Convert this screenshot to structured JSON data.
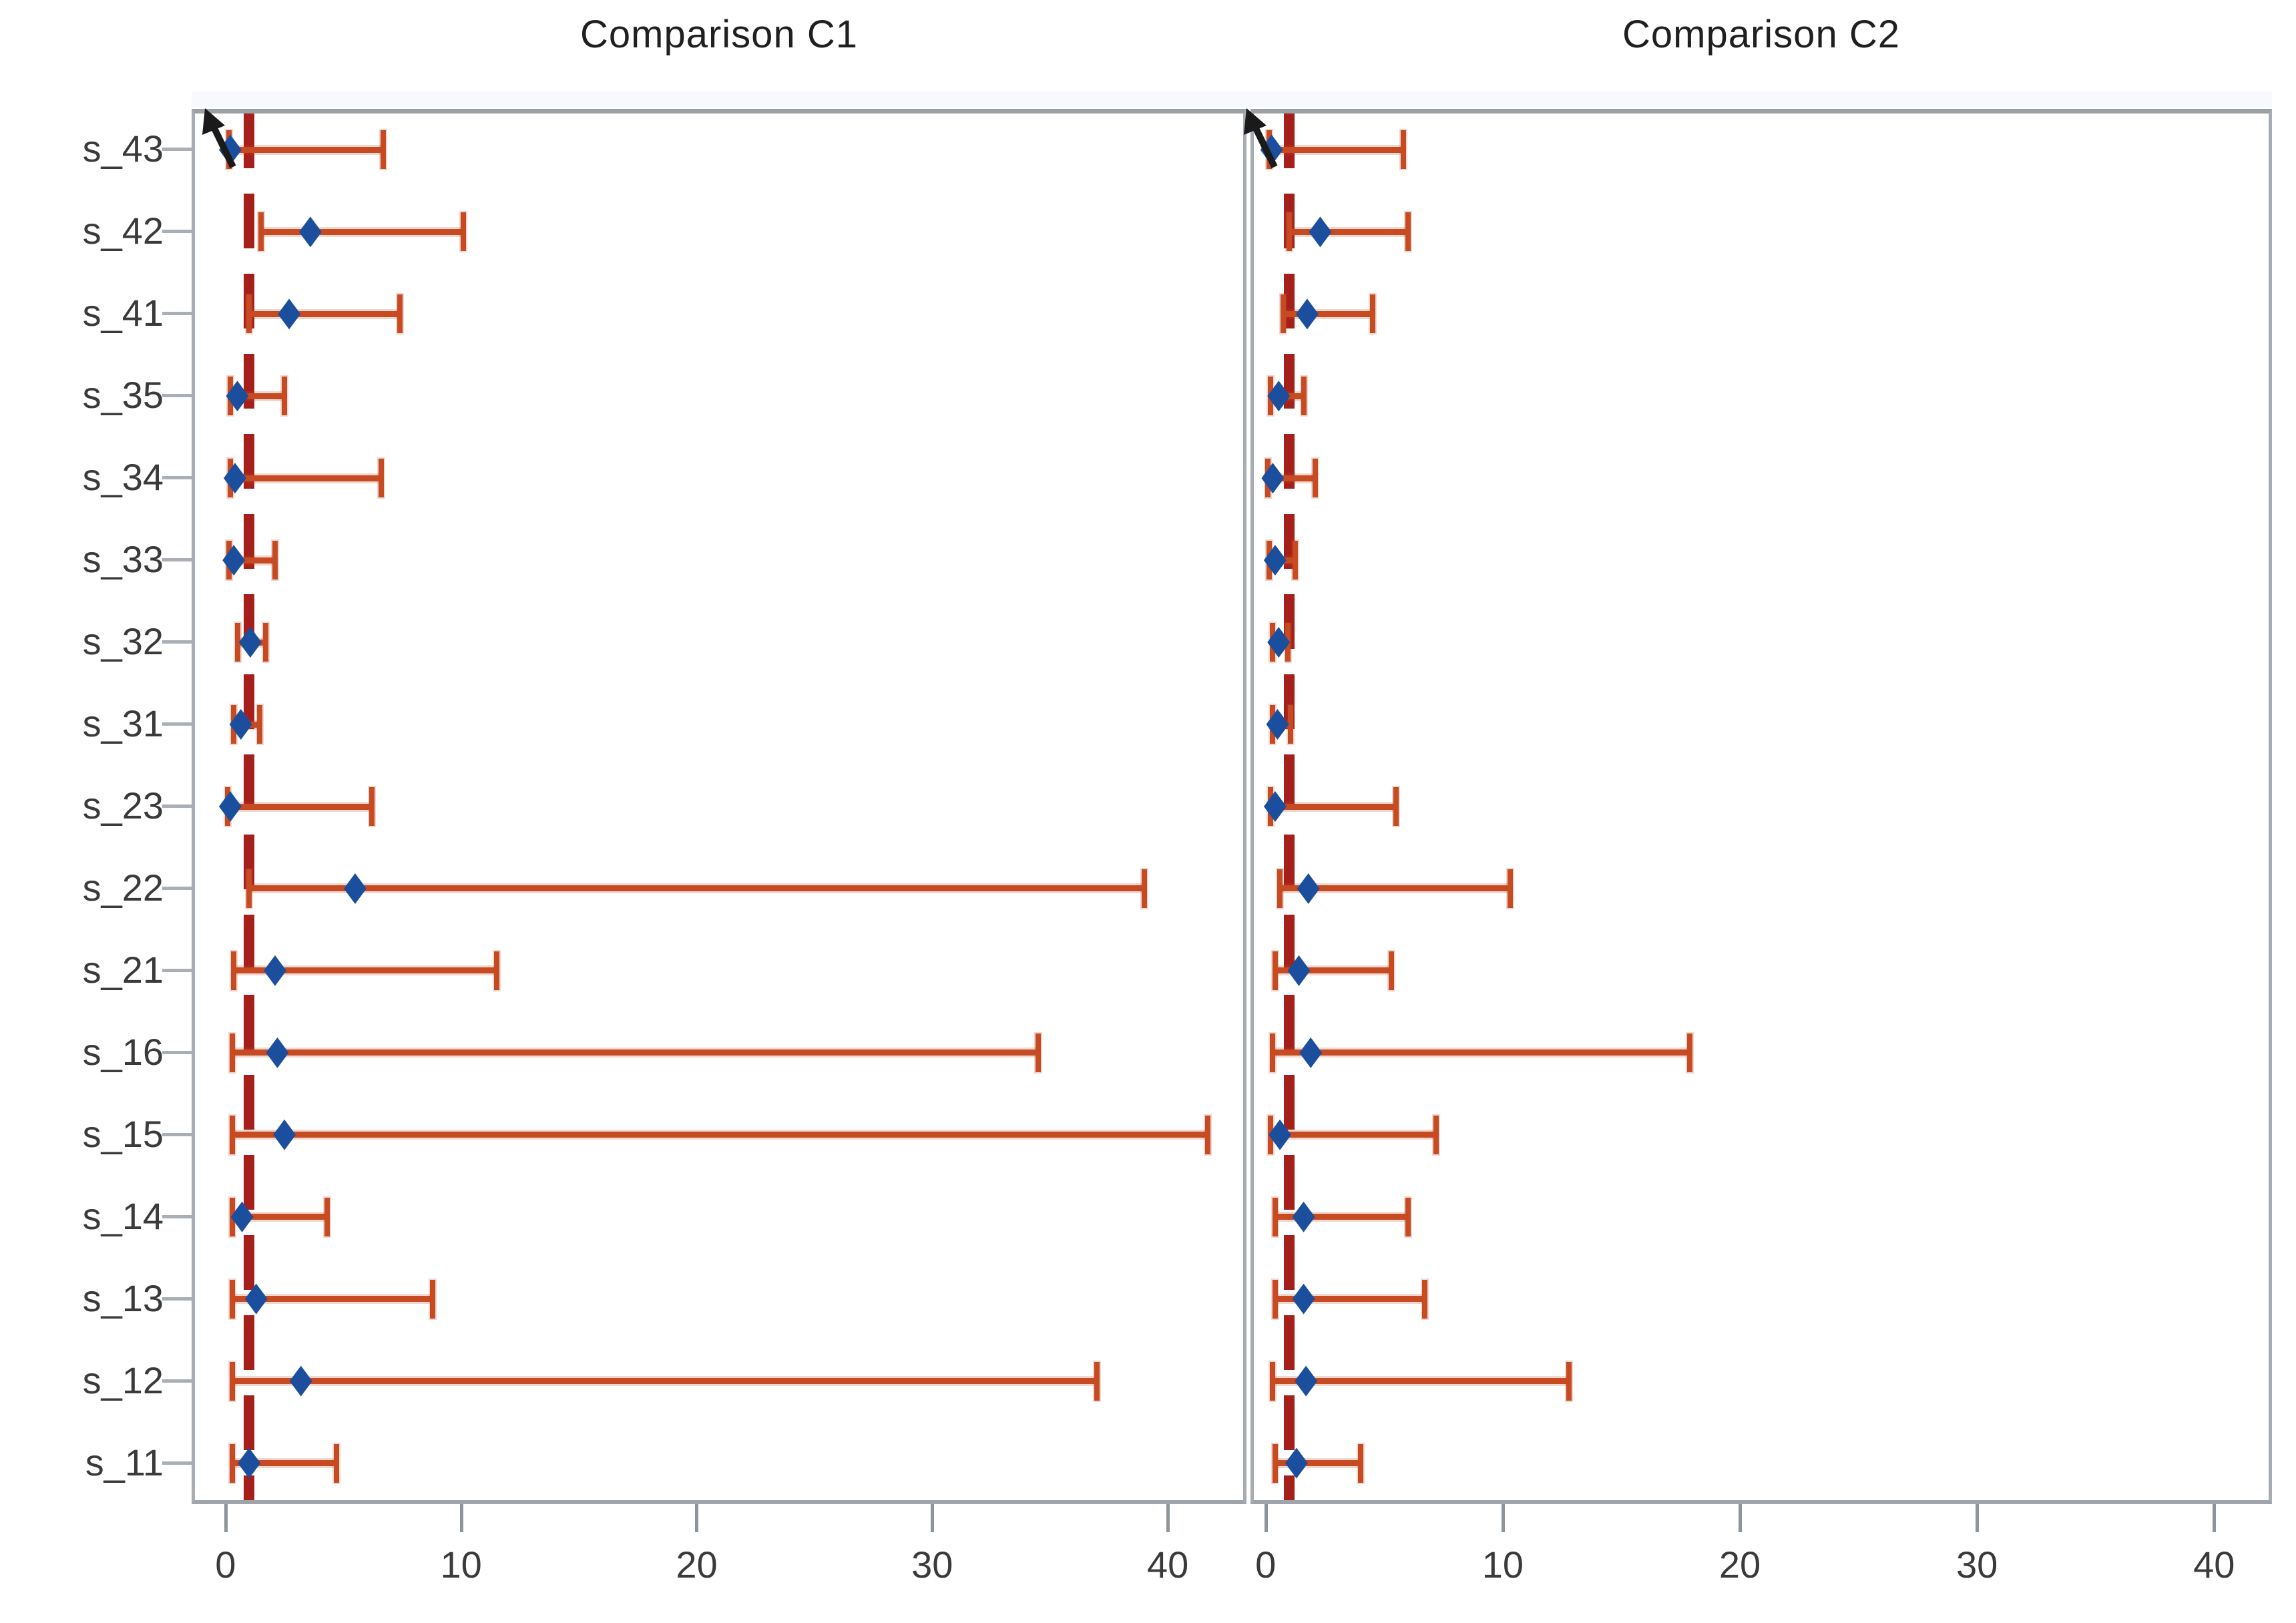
{
  "figure": {
    "background": "#ffffff",
    "colors": {
      "error_bar": "#c64a22",
      "estimate_marker": "#1b4f9e",
      "reference_line": "#a6201b",
      "panel_border": "#a6acb1",
      "axis_tick": "#8e959a",
      "label_text": "#3a3a3a",
      "title_text": "#1f1f1f"
    }
  },
  "chart_data": {
    "type": "scatter",
    "subtype": "forest-plot",
    "orientation": "horizontal",
    "grid": false,
    "legend": null,
    "categories": [
      "s_43",
      "s_42",
      "s_41",
      "s_35",
      "s_34",
      "s_33",
      "s_32",
      "s_31",
      "s_23",
      "s_22",
      "s_21",
      "s_16",
      "s_15",
      "s_14",
      "s_13",
      "s_12",
      "s_11"
    ],
    "x_ticks": [
      0,
      10,
      20,
      30,
      40
    ],
    "reference_line_x": 1,
    "panels": [
      {
        "title": "Comparison C1",
        "xlim": [
          -1.3,
          43.2
        ],
        "points": [
          {
            "label": "s_43",
            "estimate": 0.2,
            "ci_low": 0.15,
            "ci_high": 6.7,
            "truncated_arrow": true
          },
          {
            "label": "s_42",
            "estimate": 3.6,
            "ci_low": 1.5,
            "ci_high": 10.1,
            "truncated_arrow": false
          },
          {
            "label": "s_41",
            "estimate": 2.7,
            "ci_low": 1.0,
            "ci_high": 7.4,
            "truncated_arrow": false
          },
          {
            "label": "s_35",
            "estimate": 0.5,
            "ci_low": 0.2,
            "ci_high": 2.5,
            "truncated_arrow": false
          },
          {
            "label": "s_34",
            "estimate": 0.4,
            "ci_low": 0.2,
            "ci_high": 6.6,
            "truncated_arrow": false
          },
          {
            "label": "s_33",
            "estimate": 0.35,
            "ci_low": 0.15,
            "ci_high": 2.1,
            "truncated_arrow": false
          },
          {
            "label": "s_32",
            "estimate": 1.05,
            "ci_low": 0.5,
            "ci_high": 1.7,
            "truncated_arrow": false
          },
          {
            "label": "s_31",
            "estimate": 0.65,
            "ci_low": 0.35,
            "ci_high": 1.45,
            "truncated_arrow": false
          },
          {
            "label": "s_23",
            "estimate": 0.2,
            "ci_low": 0.1,
            "ci_high": 6.2,
            "truncated_arrow": false
          },
          {
            "label": "s_22",
            "estimate": 5.5,
            "ci_low": 1.0,
            "ci_high": 39.0,
            "truncated_arrow": false
          },
          {
            "label": "s_21",
            "estimate": 2.1,
            "ci_low": 0.35,
            "ci_high": 11.5,
            "truncated_arrow": false
          },
          {
            "label": "s_16",
            "estimate": 2.2,
            "ci_low": 0.3,
            "ci_high": 34.5,
            "truncated_arrow": false
          },
          {
            "label": "s_15",
            "estimate": 2.5,
            "ci_low": 0.3,
            "ci_high": 41.7,
            "truncated_arrow": false
          },
          {
            "label": "s_14",
            "estimate": 0.7,
            "ci_low": 0.3,
            "ci_high": 4.3,
            "truncated_arrow": false
          },
          {
            "label": "s_13",
            "estimate": 1.3,
            "ci_low": 0.3,
            "ci_high": 8.8,
            "truncated_arrow": false
          },
          {
            "label": "s_12",
            "estimate": 3.2,
            "ci_low": 0.3,
            "ci_high": 37.0,
            "truncated_arrow": false
          },
          {
            "label": "s_11",
            "estimate": 1.0,
            "ci_low": 0.3,
            "ci_high": 4.7,
            "truncated_arrow": false
          }
        ]
      },
      {
        "title": "Comparison C2",
        "xlim": [
          -0.5,
          42.3
        ],
        "points": [
          {
            "label": "s_43",
            "estimate": 0.25,
            "ci_low": 0.15,
            "ci_high": 5.8,
            "truncated_arrow": true
          },
          {
            "label": "s_42",
            "estimate": 2.3,
            "ci_low": 1.0,
            "ci_high": 6.0,
            "truncated_arrow": false
          },
          {
            "label": "s_41",
            "estimate": 1.75,
            "ci_low": 0.75,
            "ci_high": 4.5,
            "truncated_arrow": false
          },
          {
            "label": "s_35",
            "estimate": 0.55,
            "ci_low": 0.2,
            "ci_high": 1.6,
            "truncated_arrow": false
          },
          {
            "label": "s_34",
            "estimate": 0.3,
            "ci_low": 0.1,
            "ci_high": 2.1,
            "truncated_arrow": false
          },
          {
            "label": "s_33",
            "estimate": 0.4,
            "ci_low": 0.15,
            "ci_high": 1.25,
            "truncated_arrow": false
          },
          {
            "label": "s_32",
            "estimate": 0.55,
            "ci_low": 0.3,
            "ci_high": 0.95,
            "truncated_arrow": false
          },
          {
            "label": "s_31",
            "estimate": 0.5,
            "ci_low": 0.3,
            "ci_high": 1.05,
            "truncated_arrow": false
          },
          {
            "label": "s_23",
            "estimate": 0.4,
            "ci_low": 0.2,
            "ci_high": 5.5,
            "truncated_arrow": false
          },
          {
            "label": "s_22",
            "estimate": 1.8,
            "ci_low": 0.6,
            "ci_high": 10.3,
            "truncated_arrow": false
          },
          {
            "label": "s_21",
            "estimate": 1.4,
            "ci_low": 0.4,
            "ci_high": 5.3,
            "truncated_arrow": false
          },
          {
            "label": "s_16",
            "estimate": 1.9,
            "ci_low": 0.3,
            "ci_high": 17.9,
            "truncated_arrow": false
          },
          {
            "label": "s_15",
            "estimate": 0.6,
            "ci_low": 0.2,
            "ci_high": 7.2,
            "truncated_arrow": false
          },
          {
            "label": "s_14",
            "estimate": 1.6,
            "ci_low": 0.4,
            "ci_high": 6.0,
            "truncated_arrow": false
          },
          {
            "label": "s_13",
            "estimate": 1.6,
            "ci_low": 0.4,
            "ci_high": 6.7,
            "truncated_arrow": false
          },
          {
            "label": "s_12",
            "estimate": 1.7,
            "ci_low": 0.3,
            "ci_high": 12.8,
            "truncated_arrow": false
          },
          {
            "label": "s_11",
            "estimate": 1.3,
            "ci_low": 0.4,
            "ci_high": 4.0,
            "truncated_arrow": false
          }
        ]
      }
    ]
  }
}
